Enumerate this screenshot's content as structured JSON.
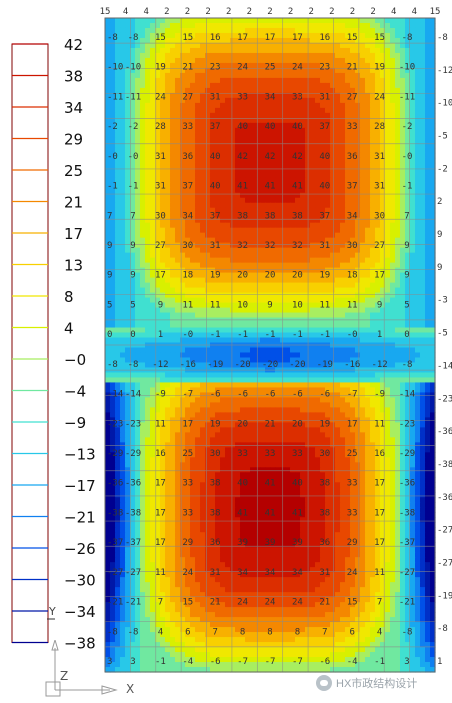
{
  "chart_data": {
    "type": "heatmap",
    "title": "",
    "legend": {
      "labels": [
        "42",
        "38",
        "34",
        "29",
        "25",
        "21",
        "17",
        "13",
        "8",
        "4",
        "−0",
        "−4",
        "−9",
        "−13",
        "−17",
        "−21",
        "−26",
        "−30",
        "−34",
        "−38"
      ],
      "colors": [
        "#b40000",
        "#cc1400",
        "#dc2e00",
        "#e84800",
        "#f06a00",
        "#f48800",
        "#f8b000",
        "#f8d000",
        "#f0e800",
        "#d8f000",
        "#a8ee60",
        "#70e8a0",
        "#40e0d0",
        "#28c8e8",
        "#18a8f0",
        "#1080f0",
        "#0050e8",
        "#0030c8",
        "#0018a8",
        "#000090"
      ]
    },
    "top_labels": [
      "15",
      "4",
      "4",
      "2",
      "2",
      "2",
      "2",
      "2",
      "2",
      "2",
      "2",
      "2",
      "2",
      "2",
      "4",
      "4",
      "15"
    ],
    "left_labels": [
      "-8",
      "-10",
      "-11",
      "-2",
      "-0",
      "-1",
      "7",
      "9",
      "9",
      "5",
      "0",
      "-8",
      "-14",
      "-23",
      "-29",
      "-36",
      "-38",
      "-37",
      "-27",
      "-21",
      "-8",
      "3"
    ],
    "right_labels": [
      "-8",
      "-12",
      "-10",
      "-5",
      "-2",
      "2",
      "9",
      "9",
      "-3",
      "-5",
      "-14",
      "-23",
      "-36",
      "-38",
      "-36",
      "-27",
      "-27",
      "-19",
      "-8",
      "1"
    ],
    "rows": [
      [
        "-8",
        "15",
        "15",
        "16",
        "17",
        "17",
        "17",
        "16",
        "15",
        "15",
        "-8"
      ],
      [
        "-10",
        "19",
        "21",
        "23",
        "24",
        "25",
        "24",
        "23",
        "21",
        "19",
        "-10"
      ],
      [
        "-11",
        "24",
        "27",
        "31",
        "33",
        "34",
        "33",
        "31",
        "27",
        "24",
        "-11"
      ],
      [
        "-2",
        "28",
        "33",
        "37",
        "40",
        "40",
        "40",
        "37",
        "33",
        "28",
        "-2"
      ],
      [
        "-0",
        "31",
        "36",
        "40",
        "42",
        "42",
        "42",
        "40",
        "36",
        "31",
        "-0"
      ],
      [
        "-1",
        "31",
        "37",
        "40",
        "41",
        "41",
        "41",
        "40",
        "37",
        "31",
        "-1"
      ],
      [
        "7",
        "30",
        "34",
        "37",
        "38",
        "38",
        "38",
        "37",
        "34",
        "30",
        "7"
      ],
      [
        "9",
        "27",
        "30",
        "31",
        "32",
        "32",
        "32",
        "31",
        "30",
        "27",
        "9"
      ],
      [
        "9",
        "17",
        "18",
        "19",
        "20",
        "20",
        "20",
        "19",
        "18",
        "17",
        "9"
      ],
      [
        "5",
        "9",
        "11",
        "11",
        "10",
        "9",
        "10",
        "11",
        "11",
        "9",
        "5"
      ],
      [
        "0",
        "1",
        "-0",
        "-1",
        "-1",
        "-1",
        "-1",
        "-1",
        "-0",
        "1",
        "0"
      ],
      [
        "-8",
        "-12",
        "-16",
        "-19",
        "-20",
        "-20",
        "-20",
        "-19",
        "-16",
        "-12",
        "-8"
      ],
      [
        "-14",
        "-9",
        "-7",
        "-6",
        "-6",
        "-6",
        "-6",
        "-6",
        "-7",
        "-9",
        "-14"
      ],
      [
        "-23",
        "11",
        "17",
        "19",
        "20",
        "21",
        "20",
        "19",
        "17",
        "11",
        "-23"
      ],
      [
        "-29",
        "16",
        "25",
        "30",
        "33",
        "33",
        "33",
        "30",
        "25",
        "16",
        "-29"
      ],
      [
        "-36",
        "17",
        "33",
        "38",
        "40",
        "41",
        "40",
        "38",
        "33",
        "17",
        "-36"
      ],
      [
        "-38",
        "17",
        "33",
        "38",
        "41",
        "41",
        "41",
        "38",
        "33",
        "17",
        "-38"
      ],
      [
        "-37",
        "17",
        "29",
        "36",
        "39",
        "39",
        "39",
        "36",
        "29",
        "17",
        "-37"
      ],
      [
        "-27",
        "11",
        "24",
        "31",
        "34",
        "34",
        "34",
        "31",
        "24",
        "11",
        "-27"
      ],
      [
        "-21",
        "7",
        "15",
        "21",
        "24",
        "24",
        "24",
        "21",
        "15",
        "7",
        "-21"
      ],
      [
        "-8",
        "4",
        "6",
        "7",
        "8",
        "8",
        "8",
        "7",
        "6",
        "4",
        "-8"
      ],
      [
        "3",
        "-1",
        "-4",
        "-6",
        "-7",
        "-7",
        "-7",
        "-6",
        "-4",
        "-1",
        "3"
      ]
    ],
    "axes": {
      "z_label": "Z",
      "x_label": "X",
      "y_label": "Y"
    },
    "watermark": "HX市政结构设计"
  }
}
